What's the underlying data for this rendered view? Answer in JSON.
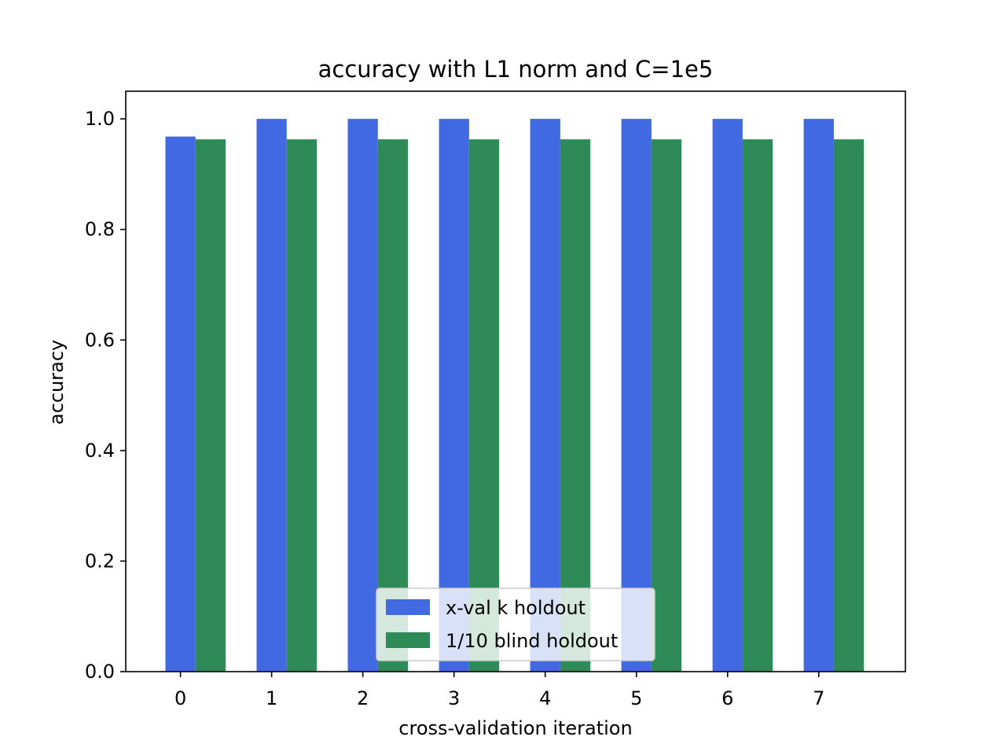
{
  "chart_data": {
    "type": "bar",
    "title": "accuracy with L1 norm and C=1e5",
    "xlabel": "cross-validation iteration",
    "ylabel": "accuracy",
    "categories": [
      "0",
      "1",
      "2",
      "3",
      "4",
      "5",
      "6",
      "7"
    ],
    "ylim": [
      0,
      1.05
    ],
    "yticks": [
      0.0,
      0.2,
      0.4,
      0.6,
      0.8,
      1.0
    ],
    "ytick_labels": [
      "0.0",
      "0.2",
      "0.4",
      "0.6",
      "0.8",
      "1.0"
    ],
    "series": [
      {
        "name": "x-val k holdout",
        "color": "#4169e1",
        "values": [
          0.968,
          1.0,
          1.0,
          1.0,
          1.0,
          1.0,
          1.0,
          1.0
        ]
      },
      {
        "name": "1/10 blind holdout",
        "color": "#2e8b57",
        "values": [
          0.963,
          0.963,
          0.963,
          0.963,
          0.963,
          0.963,
          0.963,
          0.963
        ]
      }
    ],
    "grid": false,
    "legend_position": "lower center"
  }
}
